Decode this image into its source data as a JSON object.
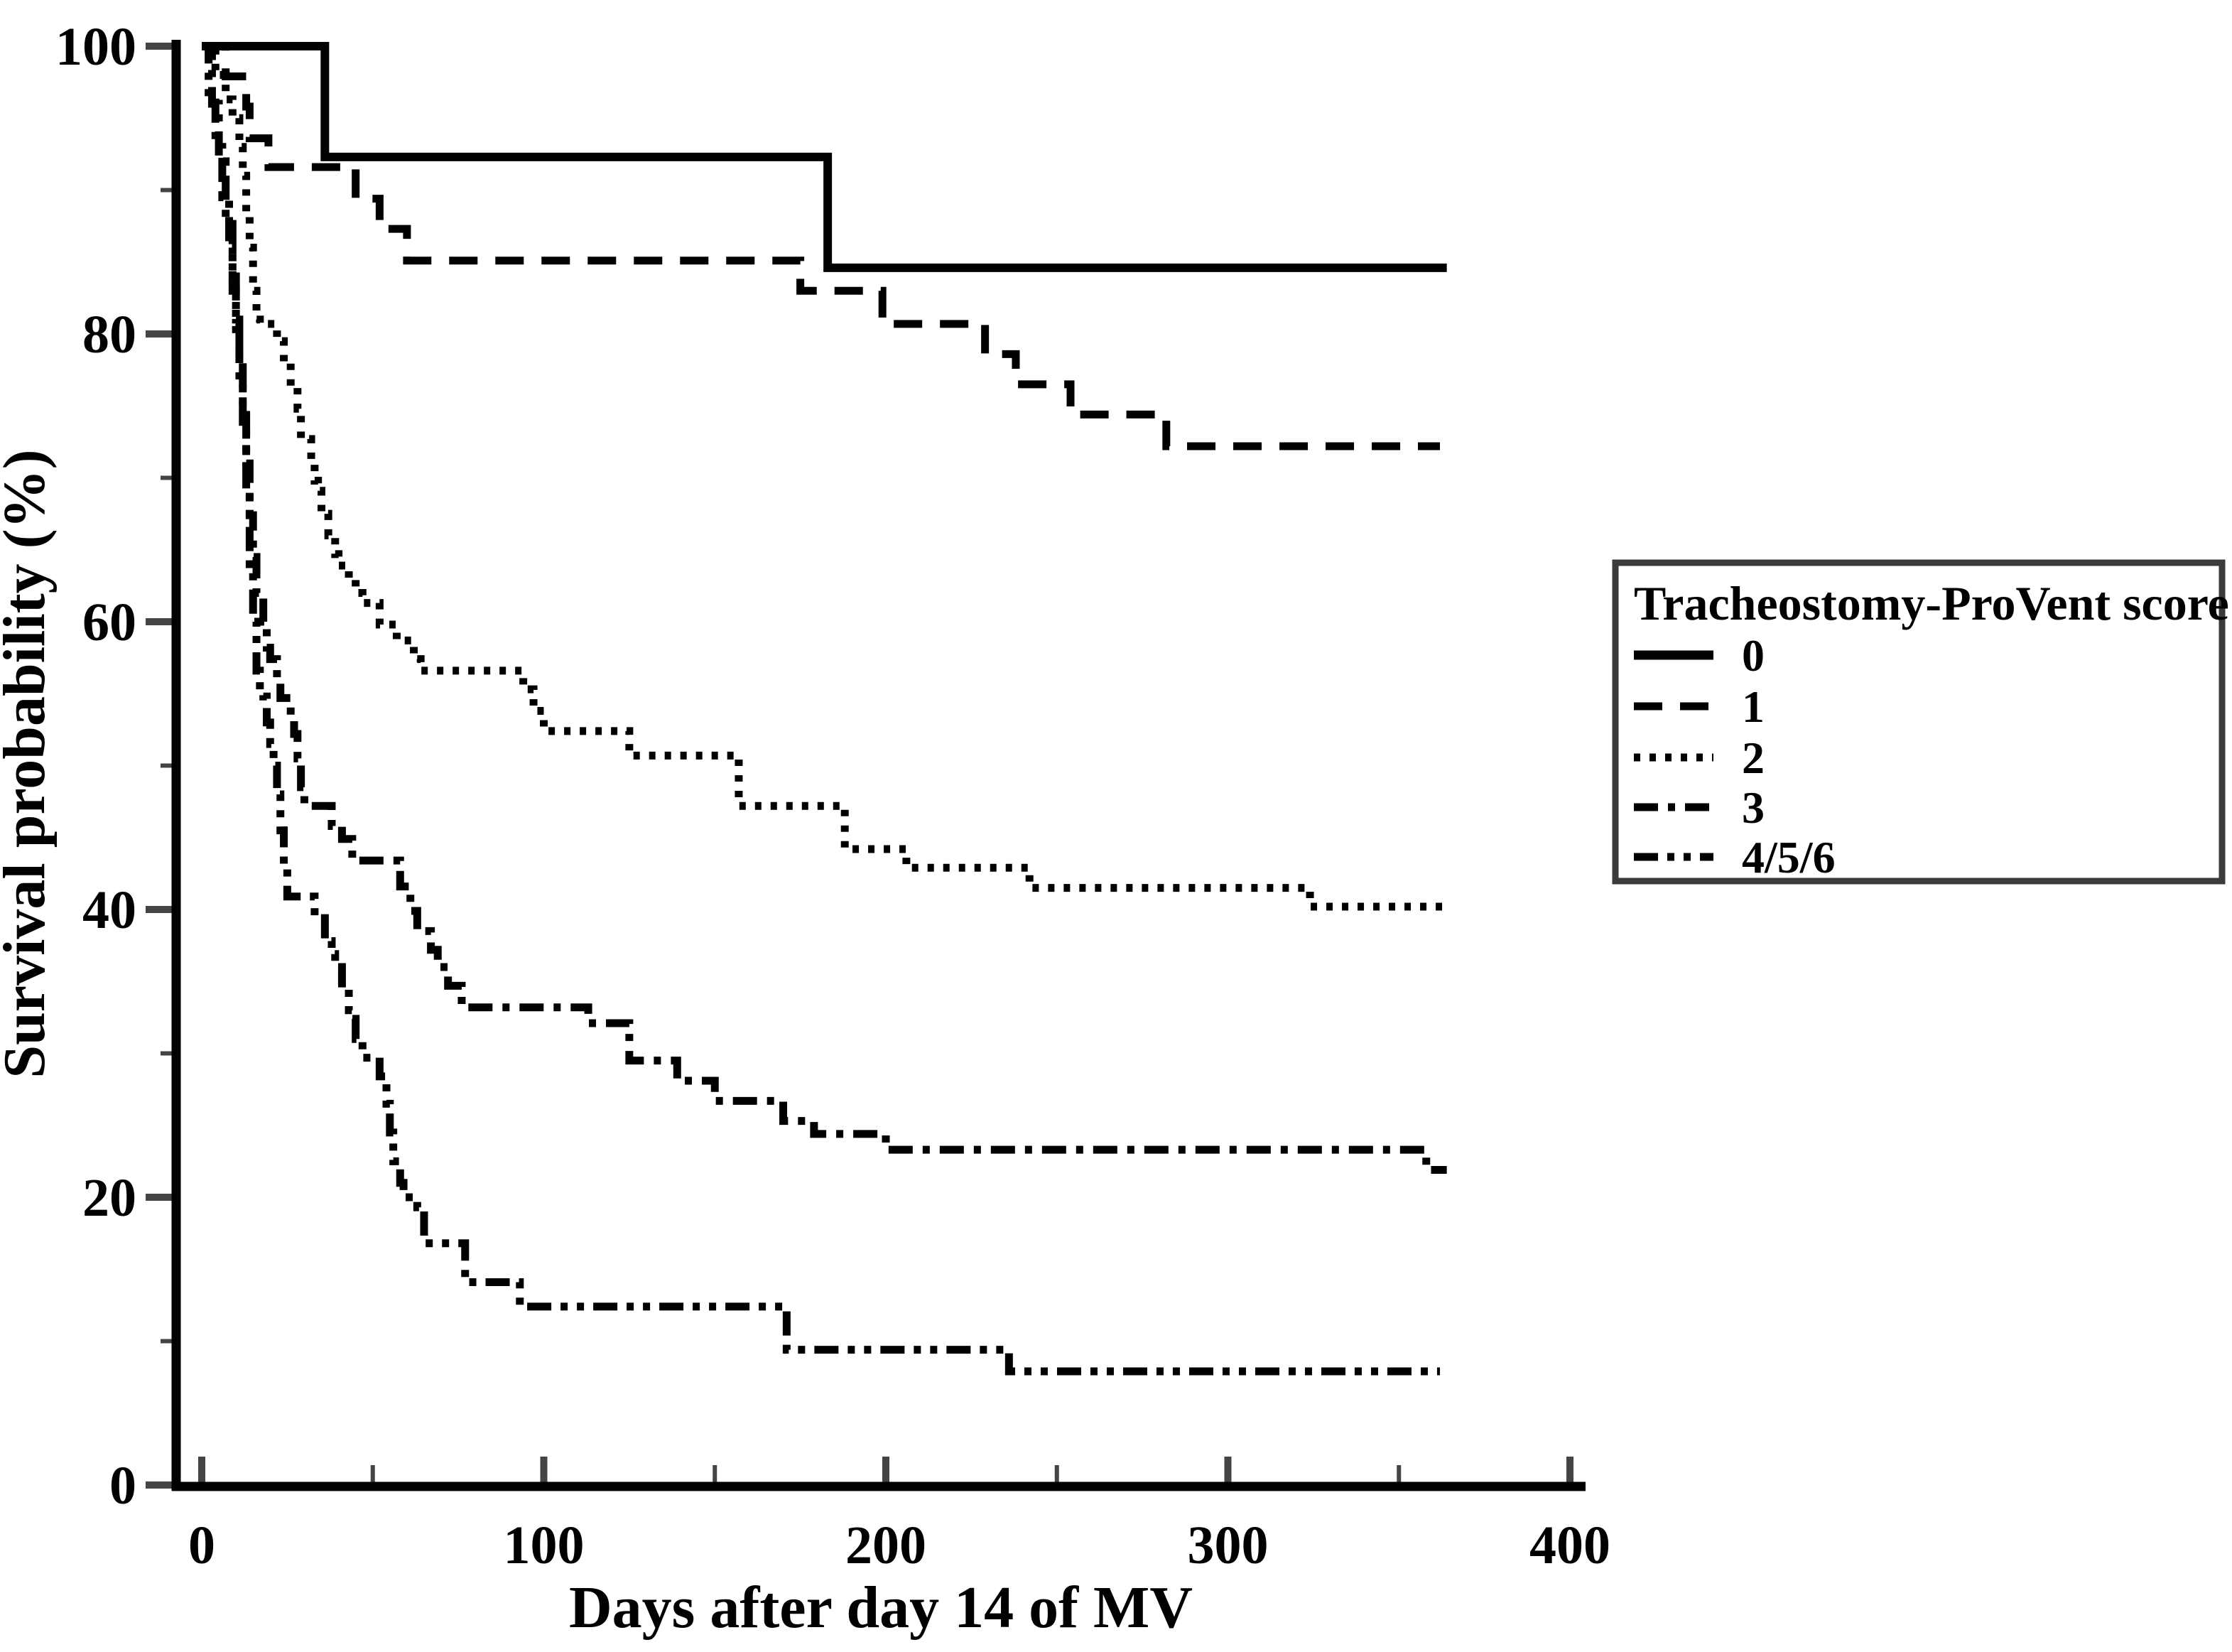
{
  "figure": {
    "background_color": "#ffffff",
    "axis_color": "#000000",
    "tick_color": "#444444",
    "text_color": "#000000",
    "legend_border_color": "#3a3a3a"
  },
  "chart_data": {
    "type": "line",
    "subtype": "kaplan-meier-step-curves",
    "title": "",
    "xlabel": "Days after day 14 of MV",
    "ylabel": "Survival probability (%)",
    "xlim": [
      0,
      400
    ],
    "ylim": [
      0,
      100
    ],
    "x_major_ticks": [
      0,
      100,
      200,
      300,
      400
    ],
    "x_minor_ticks": [
      50,
      150,
      250,
      350
    ],
    "y_major_ticks": [
      100,
      80,
      60,
      40,
      20,
      0
    ],
    "y_minor_ticks": [
      90,
      70,
      50,
      30,
      10
    ],
    "grid": false,
    "legend": {
      "title": "Tracheostomy-ProVent score",
      "position": "outside-right",
      "entries": [
        "0",
        "1",
        "2",
        "3",
        "4/5/6"
      ]
    },
    "series": [
      {
        "name": "score-0",
        "label": "0",
        "line_style": "solid",
        "color": "#000000",
        "points": [
          [
            0,
            100
          ],
          [
            36,
            92.3
          ],
          [
            183,
            84.6
          ],
          [
            364,
            84.6
          ]
        ]
      },
      {
        "name": "score-1",
        "label": "1",
        "line_style": "dashed",
        "color": "#000000",
        "points": [
          [
            0,
            100
          ],
          [
            7,
            97.9
          ],
          [
            13,
            95.8
          ],
          [
            14,
            93.6
          ],
          [
            19.5,
            91.6
          ],
          [
            45,
            89.4
          ],
          [
            52,
            87.3
          ],
          [
            60,
            85.1
          ],
          [
            175,
            83.0
          ],
          [
            199,
            80.7
          ],
          [
            229,
            78.6
          ],
          [
            238,
            76.5
          ],
          [
            254,
            74.4
          ],
          [
            282,
            72.2
          ],
          [
            362,
            72.2
          ]
        ]
      },
      {
        "name": "score-2",
        "label": "2",
        "line_style": "dotted",
        "color": "#000000",
        "points": [
          [
            0,
            100
          ],
          [
            4,
            98
          ],
          [
            7,
            96.3
          ],
          [
            9,
            95
          ],
          [
            11,
            93
          ],
          [
            12,
            91
          ],
          [
            13,
            88.5
          ],
          [
            14,
            86
          ],
          [
            15,
            83
          ],
          [
            16,
            81
          ],
          [
            17,
            80.7
          ],
          [
            22,
            79.5
          ],
          [
            24,
            78
          ],
          [
            26,
            76.4
          ],
          [
            28,
            74.8
          ],
          [
            29,
            72.7
          ],
          [
            32,
            71
          ],
          [
            33,
            69.8
          ],
          [
            34,
            69.1
          ],
          [
            35,
            67.5
          ],
          [
            37,
            66
          ],
          [
            39,
            64.7
          ],
          [
            40,
            63.9
          ],
          [
            43,
            63
          ],
          [
            45,
            62
          ],
          [
            47,
            61.3
          ],
          [
            52,
            59.8
          ],
          [
            57,
            58.7
          ],
          [
            62,
            57.4
          ],
          [
            64,
            56.6
          ],
          [
            94,
            55.3
          ],
          [
            97,
            53.8
          ],
          [
            100,
            52.4
          ],
          [
            125,
            50.7
          ],
          [
            157,
            47.2
          ],
          [
            188,
            44.2
          ],
          [
            206,
            42.9
          ],
          [
            242,
            41.5
          ],
          [
            324,
            40.2
          ],
          [
            364,
            40.2
          ]
        ]
      },
      {
        "name": "score-3",
        "label": "3",
        "line_style": "dashdot",
        "color": "#000000",
        "points": [
          [
            0,
            100
          ],
          [
            3,
            96
          ],
          [
            5,
            92
          ],
          [
            7,
            88
          ],
          [
            9,
            84
          ],
          [
            10,
            81
          ],
          [
            11,
            78
          ],
          [
            12,
            75
          ],
          [
            13,
            71
          ],
          [
            14,
            67.4
          ],
          [
            15,
            64.5
          ],
          [
            16,
            62
          ],
          [
            18,
            60
          ],
          [
            19,
            58.2
          ],
          [
            20,
            57.4
          ],
          [
            22,
            55.9
          ],
          [
            23,
            54.7
          ],
          [
            26,
            53.5
          ],
          [
            27,
            52.2
          ],
          [
            28,
            50.5
          ],
          [
            29,
            48.5
          ],
          [
            30,
            47.2
          ],
          [
            38,
            45.8
          ],
          [
            41,
            44.9
          ],
          [
            44,
            43.4
          ],
          [
            58,
            41.6
          ],
          [
            61,
            39.9
          ],
          [
            63,
            38.5
          ],
          [
            67,
            37.2
          ],
          [
            69,
            36.0
          ],
          [
            72,
            34.7
          ],
          [
            76,
            33.2
          ],
          [
            113,
            32.1
          ],
          [
            125,
            29.5
          ],
          [
            139,
            28.1
          ],
          [
            150,
            26.7
          ],
          [
            170,
            25.3
          ],
          [
            179,
            24.4
          ],
          [
            200,
            23.3
          ],
          [
            358,
            21.9
          ],
          [
            364,
            21.9
          ]
        ]
      },
      {
        "name": "score-4-5-6",
        "label": "4/5/6",
        "line_style": "dashdotdot",
        "color": "#000000",
        "points": [
          [
            0,
            100
          ],
          [
            2,
            96.5
          ],
          [
            4,
            93
          ],
          [
            6,
            89.5
          ],
          [
            8,
            86
          ],
          [
            9,
            83
          ],
          [
            10,
            80
          ],
          [
            11,
            76.5
          ],
          [
            12,
            73
          ],
          [
            13,
            69
          ],
          [
            14,
            64
          ],
          [
            15,
            60
          ],
          [
            16,
            56.6
          ],
          [
            17,
            55.3
          ],
          [
            18,
            54.8
          ],
          [
            19,
            53
          ],
          [
            20,
            51.5
          ],
          [
            21,
            50
          ],
          [
            22,
            48
          ],
          [
            23,
            45.5
          ],
          [
            24,
            43
          ],
          [
            25,
            40.9
          ],
          [
            33,
            39.4
          ],
          [
            36,
            37.8
          ],
          [
            38,
            36.9
          ],
          [
            39,
            36
          ],
          [
            41,
            34.5
          ],
          [
            43,
            33
          ],
          [
            44,
            32.4
          ],
          [
            45,
            31
          ],
          [
            47,
            29.7
          ],
          [
            52,
            28.4
          ],
          [
            54,
            26.5
          ],
          [
            55,
            24.5
          ],
          [
            56,
            22.5
          ],
          [
            58,
            21
          ],
          [
            59,
            20
          ],
          [
            63,
            19.3
          ],
          [
            65,
            16.8
          ],
          [
            77,
            14.1
          ],
          [
            93,
            12.4
          ],
          [
            171,
            9.4
          ],
          [
            236,
            7.9
          ],
          [
            362,
            7.9
          ]
        ]
      }
    ]
  }
}
